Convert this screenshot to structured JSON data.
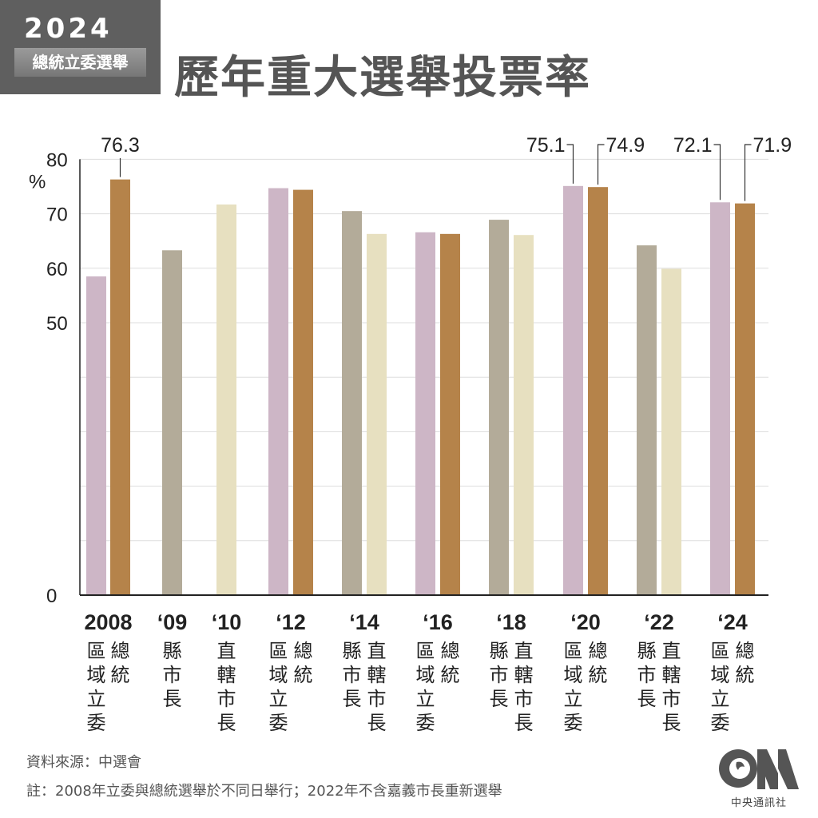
{
  "badge": {
    "year": "2024",
    "subtitle": "總統立委選舉"
  },
  "title": "歷年重大選舉投票率",
  "chart_data": {
    "type": "bar",
    "title": "歷年重大選舉投票率",
    "ylabel": "%",
    "ylim": [
      0,
      80
    ],
    "yticks": [
      "0",
      "50",
      "60",
      "70",
      "80"
    ],
    "grid": true,
    "groups": [
      {
        "label": "2008",
        "bars": [
          {
            "type": "區域立委",
            "value": 58.5
          },
          {
            "type": "總統",
            "value": 76.3,
            "label": "76.3"
          }
        ]
      },
      {
        "label": "‘09",
        "bars": [
          {
            "type": "縣市長",
            "value": 63.3
          }
        ]
      },
      {
        "label": "‘10",
        "bars": [
          {
            "type": "直轄市長",
            "value": 71.7
          }
        ]
      },
      {
        "label": "‘12",
        "bars": [
          {
            "type": "區域立委",
            "value": 74.7
          },
          {
            "type": "總統",
            "value": 74.4
          }
        ]
      },
      {
        "label": "‘14",
        "bars": [
          {
            "type": "縣市長",
            "value": 70.5
          },
          {
            "type": "直轄市長",
            "value": 66.3
          }
        ]
      },
      {
        "label": "‘16",
        "bars": [
          {
            "type": "區域立委",
            "value": 66.6
          },
          {
            "type": "總統",
            "value": 66.3
          }
        ]
      },
      {
        "label": "‘18",
        "bars": [
          {
            "type": "縣市長",
            "value": 68.9
          },
          {
            "type": "直轄市長",
            "value": 66.1
          }
        ]
      },
      {
        "label": "‘20",
        "bars": [
          {
            "type": "區域立委",
            "value": 75.1,
            "label": "75.1"
          },
          {
            "type": "總統",
            "value": 74.9,
            "label": "74.9"
          }
        ]
      },
      {
        "label": "‘22",
        "bars": [
          {
            "type": "縣市長",
            "value": 64.2
          },
          {
            "type": "直轄市長",
            "value": 59.9
          }
        ]
      },
      {
        "label": "‘24",
        "bars": [
          {
            "type": "區域立委",
            "value": 72.1,
            "label": "72.1"
          },
          {
            "type": "總統",
            "value": 71.9,
            "label": "71.9"
          }
        ]
      }
    ],
    "colors": {
      "區域立委": "#cdb6c6",
      "總統": "#b5834a",
      "縣市長": "#b3ab99",
      "直轄市長": "#e7e0c0"
    }
  },
  "footer": {
    "source": "資料來源：中選會",
    "note": "註：2008年立委與總統選舉於不同日舉行；2022年不含嘉義市長重新選舉"
  },
  "logo": {
    "text": "中央通訊社",
    "mark": "CNA"
  }
}
